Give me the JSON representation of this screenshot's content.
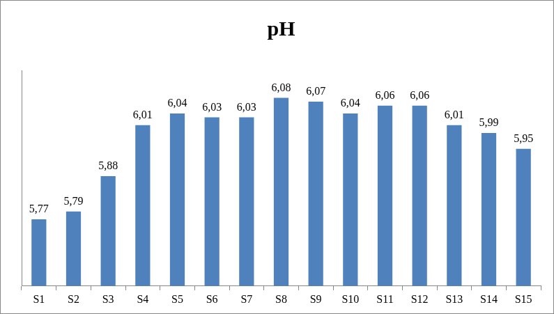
{
  "chart_data": {
    "type": "bar",
    "title": "pH",
    "categories": [
      "S1",
      "S2",
      "S3",
      "S4",
      "S5",
      "S6",
      "S7",
      "S8",
      "S9",
      "S10",
      "S11",
      "S12",
      "S13",
      "S14",
      "S15"
    ],
    "values": [
      5.77,
      5.79,
      5.88,
      6.01,
      6.04,
      6.03,
      6.03,
      6.08,
      6.07,
      6.04,
      6.06,
      6.06,
      6.01,
      5.99,
      5.95
    ],
    "value_labels": [
      "5,77",
      "5,79",
      "5,88",
      "6,01",
      "6,04",
      "6,03",
      "6,03",
      "6,08",
      "6,07",
      "6,04",
      "6,06",
      "6,06",
      "6,01",
      "5,99",
      "5,95"
    ],
    "color": "#4f81bd",
    "ylim": [
      5.6,
      6.15
    ],
    "grid": false,
    "data_labels": true,
    "tick_labels": "x"
  }
}
